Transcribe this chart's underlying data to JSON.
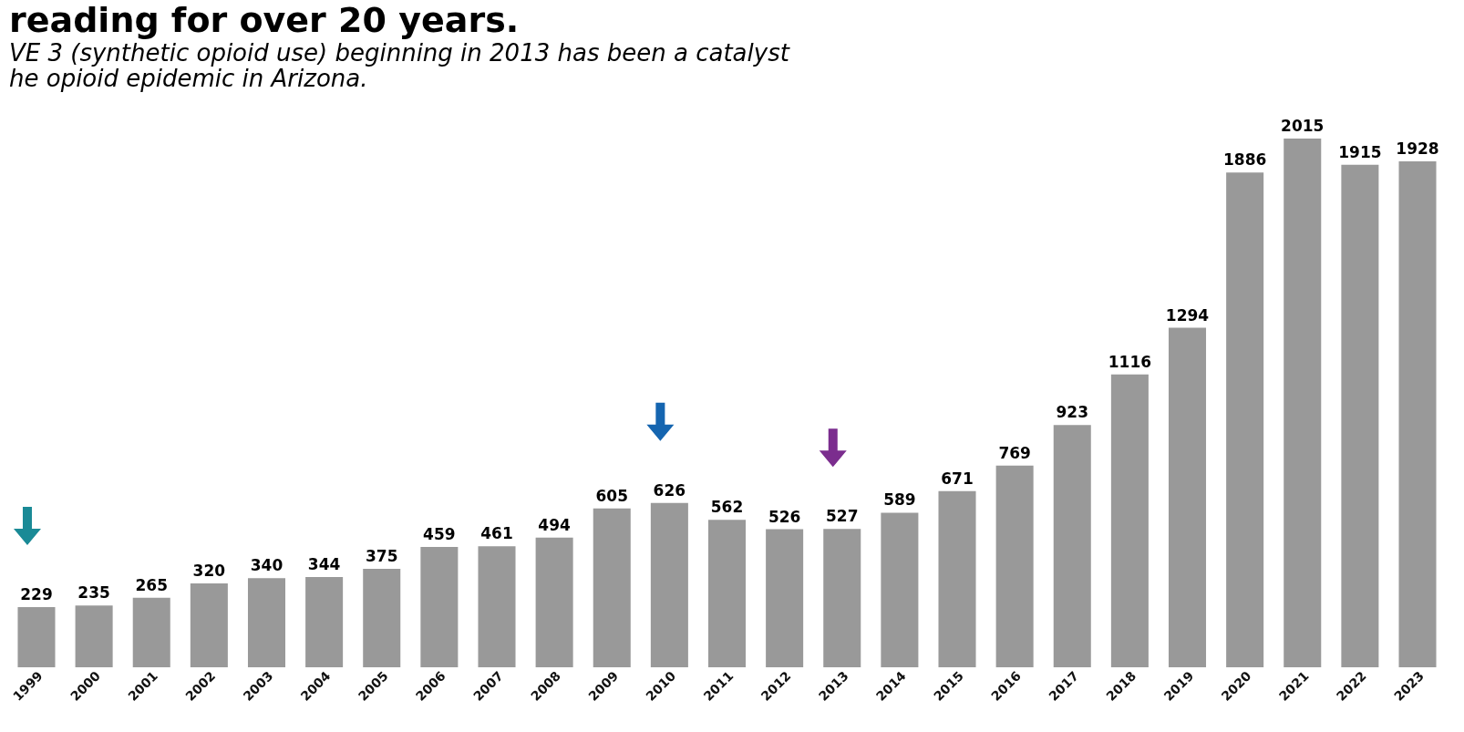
{
  "chart_data": {
    "type": "bar",
    "title": "reading for over 20 years.",
    "subtitle": [
      "VE 3 (synthetic opioid use) beginning in 2013 has been a catalyst",
      "he opioid epidemic in Arizona."
    ],
    "categories": [
      "1999",
      "2000",
      "2001",
      "2002",
      "2003",
      "2004",
      "2005",
      "2006",
      "2007",
      "2008",
      "2009",
      "2010",
      "2011",
      "2012",
      "2013",
      "2014",
      "2015",
      "2016",
      "2017",
      "2018",
      "2019",
      "2020",
      "2021",
      "2022",
      "2023"
    ],
    "values": [
      229,
      235,
      265,
      320,
      340,
      344,
      375,
      459,
      461,
      494,
      605,
      626,
      562,
      526,
      527,
      589,
      671,
      769,
      923,
      1116,
      1294,
      1886,
      2015,
      1915,
      1928
    ],
    "color": "#999999",
    "data_labels": true
  }
}
